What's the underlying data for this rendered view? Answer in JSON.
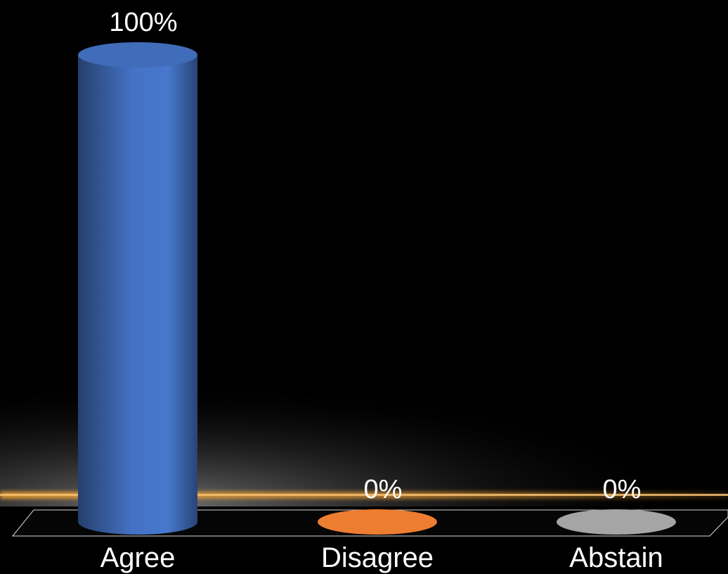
{
  "chart_data": {
    "type": "bar",
    "style": "3d-cylinder",
    "categories": [
      "Agree",
      "Disagree",
      "Abstain"
    ],
    "values": [
      100,
      0,
      0
    ],
    "data_labels": [
      "100%",
      "0%",
      "0%"
    ],
    "colors": [
      "#4472c4",
      "#ed7d31",
      "#a5a5a5"
    ],
    "ylim": [
      0,
      100
    ],
    "grid": false,
    "legend": "none",
    "background": "#000000",
    "accent_glow": "#f0a030"
  }
}
